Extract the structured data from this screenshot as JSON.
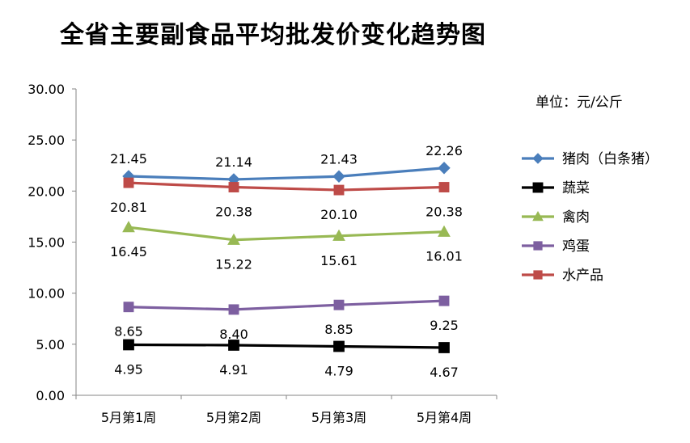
{
  "chart_data": {
    "type": "line",
    "title": "全省主要副食品平均批发价变化趋势图",
    "unit": "单位：元/公斤",
    "categories": [
      "5月第1周",
      "5月第2周",
      "5月第3周",
      "5月第4周"
    ],
    "ylim": [
      0,
      30
    ],
    "yticks": [
      "0.00",
      "5.00",
      "10.00",
      "15.00",
      "20.00",
      "25.00",
      "30.00"
    ],
    "grid": false,
    "legend_position": "right",
    "series": [
      {
        "name": "猪肉（白条猪）",
        "values": [
          21.45,
          21.14,
          21.43,
          22.26
        ],
        "labels": [
          "21.45",
          "21.14",
          "21.43",
          "22.26"
        ],
        "color": "#4a7ebb",
        "marker": "diamond",
        "label_pos": "above"
      },
      {
        "name": "蔬菜",
        "values": [
          4.95,
          4.91,
          4.79,
          4.67
        ],
        "labels": [
          "4.95",
          "4.91",
          "4.79",
          "4.67"
        ],
        "color": "#000000",
        "marker": "square",
        "label_pos": "below"
      },
      {
        "name": "禽肉",
        "values": [
          16.45,
          15.22,
          15.61,
          16.01
        ],
        "labels": [
          "16.45",
          "15.22",
          "15.61",
          "16.01"
        ],
        "color": "#98b954",
        "marker": "triangle",
        "label_pos": "below"
      },
      {
        "name": "鸡蛋",
        "values": [
          8.65,
          8.4,
          8.85,
          9.25
        ],
        "labels": [
          "8.65",
          "8.40",
          "8.85",
          "9.25"
        ],
        "color": "#7d5fa0",
        "marker": "square",
        "label_pos": "below"
      },
      {
        "name": "水产品",
        "values": [
          20.81,
          20.38,
          20.1,
          20.38
        ],
        "labels": [
          "20.81",
          "20.38",
          "20.10",
          "20.38"
        ],
        "color": "#be4b48",
        "marker": "square",
        "label_pos": "below"
      }
    ]
  }
}
